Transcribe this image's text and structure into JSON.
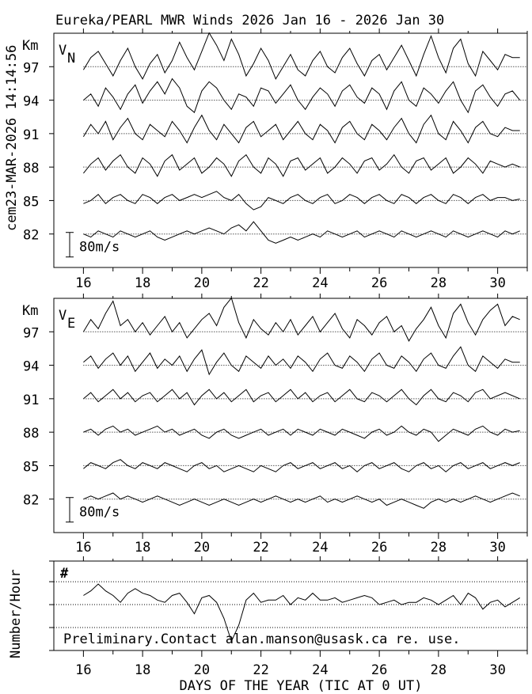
{
  "title": "Eureka/PEARL MWR Winds 2026 Jan 16 - 2026 Jan 30",
  "timestamp_label": "cem23-MAR-2026 14:14:56",
  "notice": "Preliminary.Contact alan.manson@usask.ca re. use.",
  "chart_data": [
    {
      "type": "line",
      "panel_label": "V",
      "panel_label_sub": "N",
      "ylabel": "Km",
      "xlim": [
        15,
        31
      ],
      "ylim": [
        79,
        100
      ],
      "x_ticks": [
        16,
        18,
        20,
        22,
        24,
        26,
        28,
        30
      ],
      "y_ticks": [
        97,
        94,
        91,
        88,
        85,
        82
      ],
      "scale_bar_label": "80m/s",
      "scale_bar_value": 80,
      "sample_start_day": 16,
      "sample_step_days": 0.25,
      "series": [
        {
          "height_km": 97,
          "values": [
            -10,
            30,
            50,
            10,
            -30,
            20,
            60,
            0,
            -40,
            10,
            40,
            -20,
            20,
            80,
            30,
            -10,
            50,
            110,
            70,
            20,
            90,
            40,
            -30,
            10,
            60,
            20,
            -40,
            0,
            40,
            -10,
            -30,
            20,
            50,
            0,
            -20,
            30,
            60,
            10,
            -30,
            20,
            40,
            -10,
            30,
            70,
            20,
            -30,
            40,
            100,
            30,
            -20,
            60,
            90,
            10,
            -30,
            50,
            20,
            -10,
            40,
            30,
            30
          ]
        },
        {
          "height_km": 94,
          "values": [
            0,
            20,
            -20,
            40,
            10,
            -30,
            20,
            50,
            -10,
            30,
            60,
            20,
            70,
            40,
            -20,
            -40,
            30,
            60,
            40,
            0,
            -30,
            20,
            10,
            -20,
            40,
            30,
            -10,
            20,
            50,
            0,
            -30,
            10,
            40,
            20,
            -20,
            30,
            50,
            10,
            -10,
            40,
            20,
            -30,
            30,
            60,
            0,
            -20,
            40,
            20,
            -10,
            30,
            60,
            0,
            -40,
            30,
            50,
            10,
            -20,
            20,
            30,
            0
          ]
        },
        {
          "height_km": 91,
          "values": [
            -10,
            30,
            0,
            40,
            -20,
            20,
            50,
            0,
            -20,
            30,
            10,
            -10,
            40,
            10,
            -30,
            20,
            60,
            10,
            -20,
            30,
            0,
            -30,
            20,
            40,
            -10,
            10,
            30,
            -20,
            10,
            40,
            0,
            -20,
            30,
            10,
            -30,
            20,
            40,
            0,
            -20,
            30,
            10,
            -20,
            20,
            50,
            0,
            -30,
            30,
            60,
            0,
            -20,
            40,
            10,
            -30,
            20,
            40,
            0,
            -10,
            20,
            10,
            10
          ]
        },
        {
          "height_km": 88,
          "values": [
            -20,
            10,
            30,
            -10,
            20,
            40,
            0,
            -20,
            30,
            10,
            -30,
            20,
            40,
            -10,
            10,
            30,
            -20,
            0,
            30,
            10,
            -30,
            20,
            40,
            0,
            -20,
            30,
            10,
            -30,
            20,
            30,
            -10,
            10,
            30,
            -20,
            0,
            30,
            10,
            -20,
            20,
            30,
            -10,
            10,
            40,
            0,
            -20,
            20,
            30,
            -10,
            10,
            30,
            -20,
            0,
            30,
            10,
            -20,
            20,
            10,
            0,
            10,
            0
          ]
        },
        {
          "height_km": 85,
          "values": [
            -10,
            0,
            20,
            -10,
            10,
            20,
            0,
            -10,
            20,
            10,
            -10,
            10,
            20,
            0,
            10,
            20,
            10,
            20,
            30,
            10,
            0,
            20,
            -10,
            -30,
            -20,
            10,
            0,
            -10,
            10,
            20,
            0,
            -10,
            10,
            20,
            -10,
            0,
            20,
            10,
            -10,
            10,
            20,
            0,
            -10,
            20,
            10,
            -10,
            10,
            20,
            0,
            -10,
            20,
            10,
            -10,
            10,
            20,
            0,
            10,
            10,
            0,
            5
          ]
        },
        {
          "height_km": 82,
          "values": [
            0,
            -10,
            10,
            0,
            -10,
            10,
            0,
            -10,
            0,
            10,
            -10,
            -20,
            -10,
            0,
            10,
            0,
            10,
            20,
            10,
            0,
            20,
            30,
            10,
            40,
            10,
            -20,
            -30,
            -20,
            -10,
            -20,
            -10,
            0,
            -10,
            10,
            0,
            -10,
            0,
            10,
            -10,
            0,
            10,
            0,
            -10,
            10,
            0,
            -10,
            0,
            10,
            0,
            -10,
            10,
            0,
            -10,
            0,
            10,
            0,
            -10,
            10,
            0,
            10
          ]
        }
      ]
    },
    {
      "type": "line",
      "panel_label": "V",
      "panel_label_sub": "E",
      "ylabel": "Km",
      "xlim": [
        15,
        31
      ],
      "ylim": [
        79,
        100
      ],
      "x_ticks": [
        16,
        18,
        20,
        22,
        24,
        26,
        28,
        30
      ],
      "y_ticks": [
        97,
        94,
        91,
        88,
        85,
        82
      ],
      "scale_bar_label": "80m/s",
      "scale_bar_value": 80,
      "sample_start_day": 16,
      "sample_step_days": 0.25,
      "series": [
        {
          "height_km": 97,
          "values": [
            0,
            40,
            10,
            60,
            100,
            20,
            40,
            0,
            30,
            -10,
            20,
            50,
            0,
            30,
            -20,
            10,
            40,
            60,
            20,
            80,
            110,
            30,
            -20,
            40,
            10,
            -10,
            30,
            0,
            40,
            -10,
            20,
            50,
            0,
            30,
            60,
            10,
            -20,
            40,
            20,
            -10,
            30,
            50,
            0,
            20,
            -30,
            10,
            40,
            80,
            20,
            -20,
            60,
            90,
            30,
            -10,
            40,
            70,
            90,
            20,
            50,
            40
          ]
        },
        {
          "height_km": 94,
          "values": [
            10,
            30,
            -10,
            20,
            40,
            0,
            30,
            -20,
            10,
            40,
            -10,
            20,
            0,
            30,
            -20,
            20,
            50,
            -30,
            10,
            40,
            0,
            -20,
            30,
            10,
            -10,
            30,
            0,
            20,
            -10,
            30,
            10,
            -20,
            20,
            40,
            0,
            -10,
            30,
            10,
            -20,
            20,
            40,
            0,
            -10,
            30,
            10,
            -20,
            20,
            40,
            0,
            -10,
            30,
            60,
            0,
            -20,
            30,
            10,
            -10,
            20,
            10,
            10
          ]
        },
        {
          "height_km": 91,
          "values": [
            0,
            20,
            -10,
            10,
            30,
            0,
            20,
            -10,
            10,
            20,
            -10,
            10,
            30,
            0,
            20,
            -20,
            10,
            30,
            0,
            20,
            -10,
            10,
            30,
            -10,
            10,
            20,
            -10,
            10,
            30,
            0,
            20,
            -10,
            10,
            20,
            -10,
            10,
            30,
            0,
            -10,
            20,
            10,
            -10,
            10,
            30,
            0,
            -20,
            10,
            30,
            0,
            -10,
            20,
            10,
            -10,
            20,
            30,
            0,
            10,
            20,
            10,
            0
          ]
        },
        {
          "height_km": 88,
          "values": [
            0,
            10,
            -10,
            10,
            20,
            0,
            10,
            -10,
            0,
            10,
            20,
            0,
            10,
            -10,
            0,
            10,
            -10,
            -20,
            0,
            10,
            -10,
            -20,
            -10,
            0,
            10,
            -10,
            0,
            10,
            -10,
            10,
            0,
            -10,
            10,
            0,
            -10,
            10,
            0,
            -10,
            -20,
            0,
            10,
            -10,
            0,
            20,
            0,
            -10,
            10,
            0,
            -30,
            -10,
            10,
            0,
            -10,
            10,
            20,
            0,
            -10,
            10,
            0,
            5
          ]
        },
        {
          "height_km": 85,
          "values": [
            -10,
            10,
            0,
            -10,
            10,
            20,
            0,
            -10,
            10,
            0,
            -10,
            10,
            0,
            -10,
            -20,
            0,
            10,
            -10,
            0,
            -20,
            -10,
            0,
            -10,
            -20,
            0,
            -10,
            -20,
            0,
            10,
            -10,
            0,
            10,
            -10,
            0,
            10,
            -10,
            0,
            -20,
            0,
            10,
            -10,
            0,
            10,
            -10,
            -20,
            0,
            10,
            -10,
            0,
            -20,
            0,
            10,
            -10,
            0,
            10,
            -10,
            0,
            10,
            0,
            10
          ]
        },
        {
          "height_km": 82,
          "values": [
            0,
            10,
            0,
            10,
            20,
            0,
            10,
            0,
            -10,
            0,
            10,
            0,
            -10,
            -20,
            -10,
            0,
            -10,
            -20,
            -10,
            0,
            -10,
            -20,
            -10,
            0,
            -10,
            0,
            10,
            0,
            -10,
            0,
            -10,
            0,
            10,
            -10,
            0,
            -10,
            0,
            10,
            0,
            -10,
            0,
            -20,
            -10,
            0,
            -10,
            -20,
            -30,
            -10,
            0,
            -10,
            0,
            -10,
            0,
            10,
            0,
            -10,
            0,
            10,
            20,
            10
          ]
        }
      ]
    },
    {
      "type": "line",
      "panel_label": "#",
      "ylabel": "Number/Hour",
      "xlabel": "DAYS OF THE YEAR (TIC AT 0 UT)",
      "xlim": [
        15,
        31
      ],
      "ylim": [
        0,
        39
      ],
      "gridlines": [
        10,
        20,
        30
      ],
      "x_ticks": [
        16,
        18,
        20,
        22,
        24,
        26,
        28,
        30
      ],
      "sample_start_day": 16,
      "sample_step_days": 0.25,
      "values": [
        24,
        26,
        29,
        26,
        24,
        21,
        25,
        27,
        25,
        24,
        22,
        21,
        24,
        25,
        21,
        16,
        23,
        24,
        21,
        14,
        4,
        11,
        22,
        25,
        21,
        22,
        22,
        24,
        20,
        23,
        22,
        25,
        22,
        22,
        23,
        21,
        22,
        23,
        24,
        23,
        20,
        21,
        22,
        20,
        21,
        21,
        23,
        22,
        20,
        22,
        24,
        20,
        25,
        23,
        18,
        21,
        22,
        19,
        21,
        23
      ]
    }
  ]
}
